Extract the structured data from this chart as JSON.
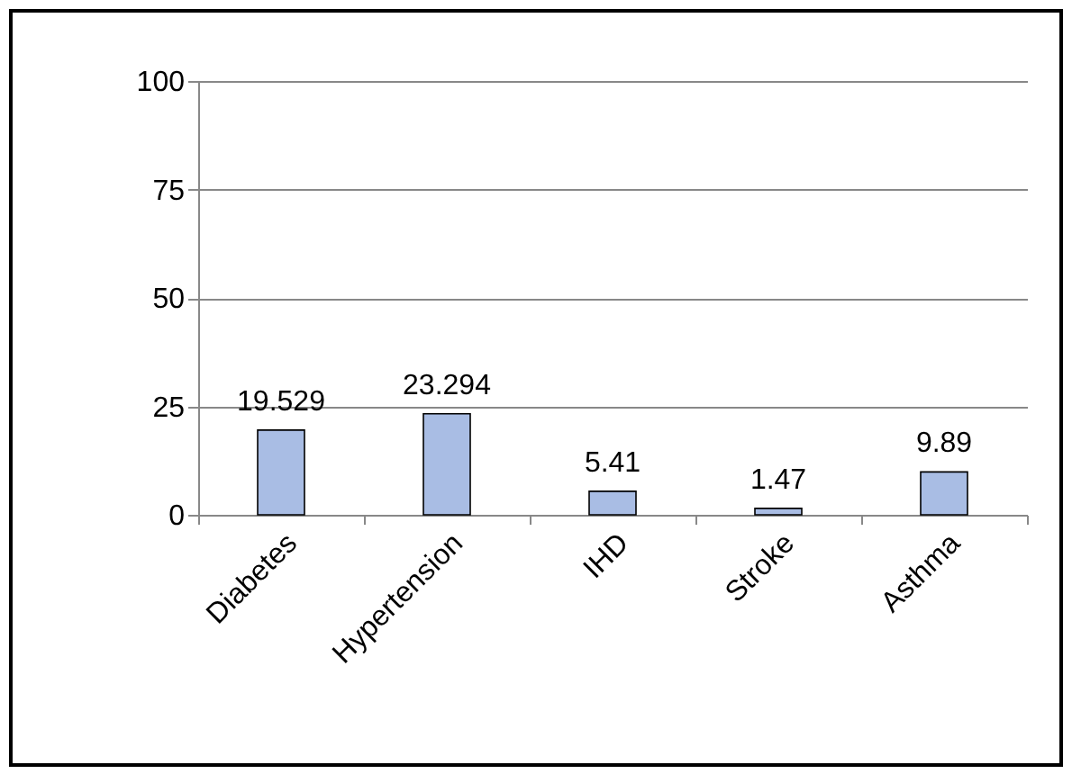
{
  "chart_data": {
    "type": "bar",
    "categories": [
      "Diabetes",
      "Hypertension",
      "IHD",
      "Stroke",
      "Asthma"
    ],
    "values": [
      19.529,
      23.294,
      5.41,
      1.47,
      9.89
    ],
    "color": "#a9bde4",
    "ylim": [
      0,
      100
    ],
    "yticks": [
      0,
      25,
      50,
      75,
      100
    ],
    "grid": "y",
    "data_labels": true
  }
}
